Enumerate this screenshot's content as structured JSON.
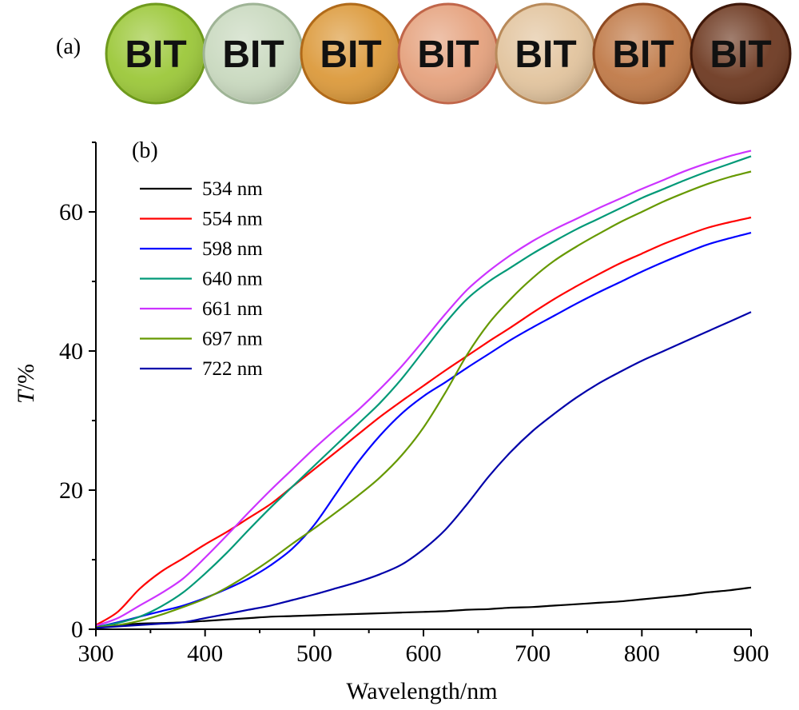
{
  "panel_a": {
    "label": "(a)",
    "samples": [
      {
        "text": "BIT",
        "color": "#9cc83a",
        "rim": "#6f9a1e"
      },
      {
        "text": "BIT",
        "color": "#c9d9bf",
        "rim": "#9fb496"
      },
      {
        "text": "BIT",
        "color": "#dc9a3c",
        "rim": "#b06a1a"
      },
      {
        "text": "BIT",
        "color": "#e5a27e",
        "rim": "#c0664a"
      },
      {
        "text": "BIT",
        "color": "#e2c49e",
        "rim": "#b88a5a"
      },
      {
        "text": "BIT",
        "color": "#c07a48",
        "rim": "#8e4a22"
      },
      {
        "text": "BIT",
        "color": "#6e3a22",
        "rim": "#3e180a"
      }
    ]
  },
  "chart_data": {
    "type": "line",
    "panel_label": "(b)",
    "xlabel": "Wavelength/nm",
    "ylabel": "T/%",
    "ylabel_italic": "T",
    "ylabel_rest": "/%",
    "xlim": [
      300,
      900
    ],
    "ylim": [
      0,
      70
    ],
    "xticks": [
      300,
      400,
      500,
      600,
      700,
      800,
      900
    ],
    "yticks": [
      0,
      20,
      40,
      60
    ],
    "grid": false,
    "legend_position": "top-left",
    "x": [
      300,
      320,
      340,
      360,
      380,
      400,
      420,
      440,
      460,
      480,
      500,
      520,
      540,
      560,
      580,
      600,
      620,
      640,
      660,
      680,
      700,
      720,
      740,
      760,
      780,
      800,
      820,
      840,
      860,
      880,
      900
    ],
    "series": [
      {
        "name": "534 nm",
        "color": "#000000",
        "values": [
          0.4,
          0.6,
          0.8,
          0.9,
          1.0,
          1.2,
          1.4,
          1.6,
          1.8,
          1.9,
          2.0,
          2.1,
          2.2,
          2.3,
          2.4,
          2.5,
          2.6,
          2.8,
          2.9,
          3.1,
          3.2,
          3.4,
          3.6,
          3.8,
          4.0,
          4.3,
          4.6,
          4.9,
          5.3,
          5.6,
          6.0
        ]
      },
      {
        "name": "554 nm",
        "color": "#ff0000",
        "values": [
          0.6,
          2.5,
          5.8,
          8.3,
          10.2,
          12.2,
          14.0,
          16.0,
          18.0,
          20.5,
          23.0,
          25.5,
          28.0,
          30.5,
          32.8,
          35.0,
          37.2,
          39.3,
          41.4,
          43.4,
          45.5,
          47.5,
          49.3,
          51.0,
          52.6,
          54.0,
          55.4,
          56.6,
          57.7,
          58.5,
          59.2
        ]
      },
      {
        "name": "598 nm",
        "color": "#0000ff",
        "values": [
          0.3,
          1.0,
          1.8,
          2.6,
          3.4,
          4.5,
          5.8,
          7.3,
          9.2,
          11.6,
          15.0,
          19.5,
          24.0,
          27.8,
          31.0,
          33.5,
          35.5,
          37.6,
          39.6,
          41.6,
          43.4,
          45.1,
          46.8,
          48.4,
          49.9,
          51.4,
          52.8,
          54.1,
          55.3,
          56.2,
          57.0
        ]
      },
      {
        "name": "640 nm",
        "color": "#009977",
        "values": [
          0.3,
          0.9,
          1.8,
          3.3,
          5.3,
          8.0,
          11.0,
          14.3,
          17.5,
          20.5,
          23.5,
          26.5,
          29.5,
          32.5,
          36.0,
          40.0,
          44.0,
          47.5,
          50.0,
          52.0,
          54.0,
          55.8,
          57.5,
          59.0,
          60.5,
          62.0,
          63.3,
          64.6,
          65.8,
          66.9,
          68.0
        ]
      },
      {
        "name": "661 nm",
        "color": "#cc33ff",
        "values": [
          0.5,
          1.6,
          3.4,
          5.2,
          7.3,
          10.3,
          13.5,
          16.8,
          20.0,
          23.0,
          26.0,
          28.8,
          31.5,
          34.5,
          37.8,
          41.5,
          45.3,
          48.8,
          51.5,
          53.8,
          55.8,
          57.5,
          59.0,
          60.5,
          61.9,
          63.3,
          64.6,
          65.9,
          67.0,
          68.0,
          68.8
        ]
      },
      {
        "name": "697 nm",
        "color": "#669900",
        "values": [
          0.3,
          0.6,
          1.2,
          2.1,
          3.2,
          4.4,
          6.0,
          7.9,
          10.0,
          12.3,
          14.5,
          16.8,
          19.2,
          21.8,
          25.0,
          29.0,
          34.0,
          39.5,
          44.0,
          47.5,
          50.5,
          53.0,
          55.0,
          56.8,
          58.5,
          60.0,
          61.5,
          62.8,
          64.0,
          65.0,
          65.8
        ]
      },
      {
        "name": "722 nm",
        "color": "#0000aa",
        "values": [
          0.2,
          0.4,
          0.6,
          0.8,
          1.0,
          1.6,
          2.2,
          2.8,
          3.4,
          4.2,
          5.0,
          5.9,
          6.8,
          7.9,
          9.3,
          11.5,
          14.3,
          18.0,
          22.0,
          25.5,
          28.5,
          31.0,
          33.3,
          35.3,
          37.0,
          38.6,
          40.0,
          41.4,
          42.8,
          44.2,
          45.6
        ]
      }
    ]
  }
}
